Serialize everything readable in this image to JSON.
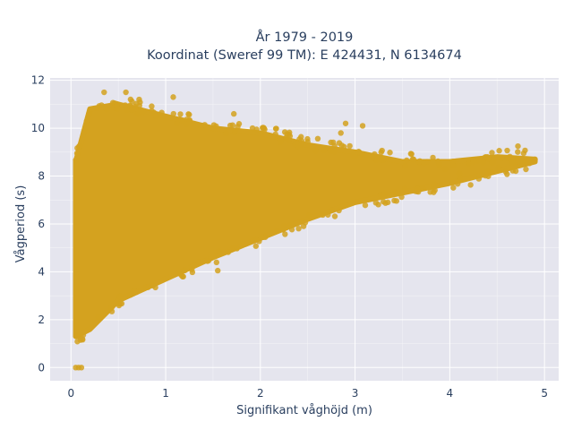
{
  "chart_data": {
    "type": "scatter",
    "title_line1": "År 1979 - 2019",
    "title_line2": "Koordinat (Sweref 99 TM): E 424431, N 6134674",
    "xlabel": "Signifikant våghöjd (m)",
    "ylabel": "Vågperiod (s)",
    "xlim": [
      -0.22,
      5.15
    ],
    "ylim": [
      -0.55,
      12.1
    ],
    "xticks": [
      0,
      1,
      2,
      3,
      4,
      5
    ],
    "xtick_labels": [
      "0",
      "1",
      "2",
      "3",
      "4",
      "5"
    ],
    "yticks": [
      0,
      2,
      4,
      6,
      8,
      10,
      12
    ],
    "ytick_labels": [
      "0",
      "2",
      "4",
      "6",
      "8",
      "10",
      "12"
    ],
    "grid": true,
    "legend": "none",
    "marker_color": "#D4A21F",
    "plot_background": "#E5E5EE",
    "envelope": {
      "description": "dense point cloud bounds",
      "upper": [
        [
          0.05,
          8.6
        ],
        [
          0.2,
          10.8
        ],
        [
          0.5,
          11.0
        ],
        [
          1.0,
          10.5
        ],
        [
          1.5,
          10.0
        ],
        [
          2.0,
          9.8
        ],
        [
          2.5,
          9.3
        ],
        [
          3.0,
          9.0
        ],
        [
          3.5,
          8.6
        ],
        [
          4.0,
          8.6
        ],
        [
          4.5,
          8.8
        ],
        [
          4.9,
          8.7
        ]
      ],
      "lower": [
        [
          0.05,
          1.3
        ],
        [
          0.2,
          1.6
        ],
        [
          0.5,
          2.8
        ],
        [
          1.0,
          3.7
        ],
        [
          1.5,
          4.6
        ],
        [
          2.0,
          5.4
        ],
        [
          2.5,
          6.2
        ],
        [
          3.0,
          6.9
        ],
        [
          3.5,
          7.3
        ],
        [
          4.0,
          7.7
        ],
        [
          4.5,
          8.2
        ],
        [
          4.9,
          8.6
        ]
      ]
    },
    "points": [
      {
        "x": 0.05,
        "y": 0.0
      },
      {
        "x": 0.08,
        "y": 0.0
      },
      {
        "x": 0.11,
        "y": 0.0
      },
      {
        "x": 0.35,
        "y": 11.5
      },
      {
        "x": 0.58,
        "y": 11.5
      },
      {
        "x": 1.08,
        "y": 11.3
      },
      {
        "x": 0.72,
        "y": 11.2
      },
      {
        "x": 1.72,
        "y": 10.6
      },
      {
        "x": 2.9,
        "y": 10.2
      },
      {
        "x": 3.08,
        "y": 10.1
      },
      {
        "x": 2.85,
        "y": 9.8
      },
      {
        "x": 4.72,
        "y": 9.25
      },
      {
        "x": 4.78,
        "y": 8.95
      },
      {
        "x": 4.9,
        "y": 8.7
      },
      {
        "x": 4.55,
        "y": 8.75
      },
      {
        "x": 4.25,
        "y": 8.65
      },
      {
        "x": 4.38,
        "y": 8.8
      },
      {
        "x": 4.45,
        "y": 8.55
      },
      {
        "x": 4.1,
        "y": 8.1
      },
      {
        "x": 3.95,
        "y": 8.3
      },
      {
        "x": 1.55,
        "y": 4.05
      },
      {
        "x": 0.1,
        "y": 1.15
      },
      {
        "x": 0.12,
        "y": 1.2
      }
    ]
  }
}
